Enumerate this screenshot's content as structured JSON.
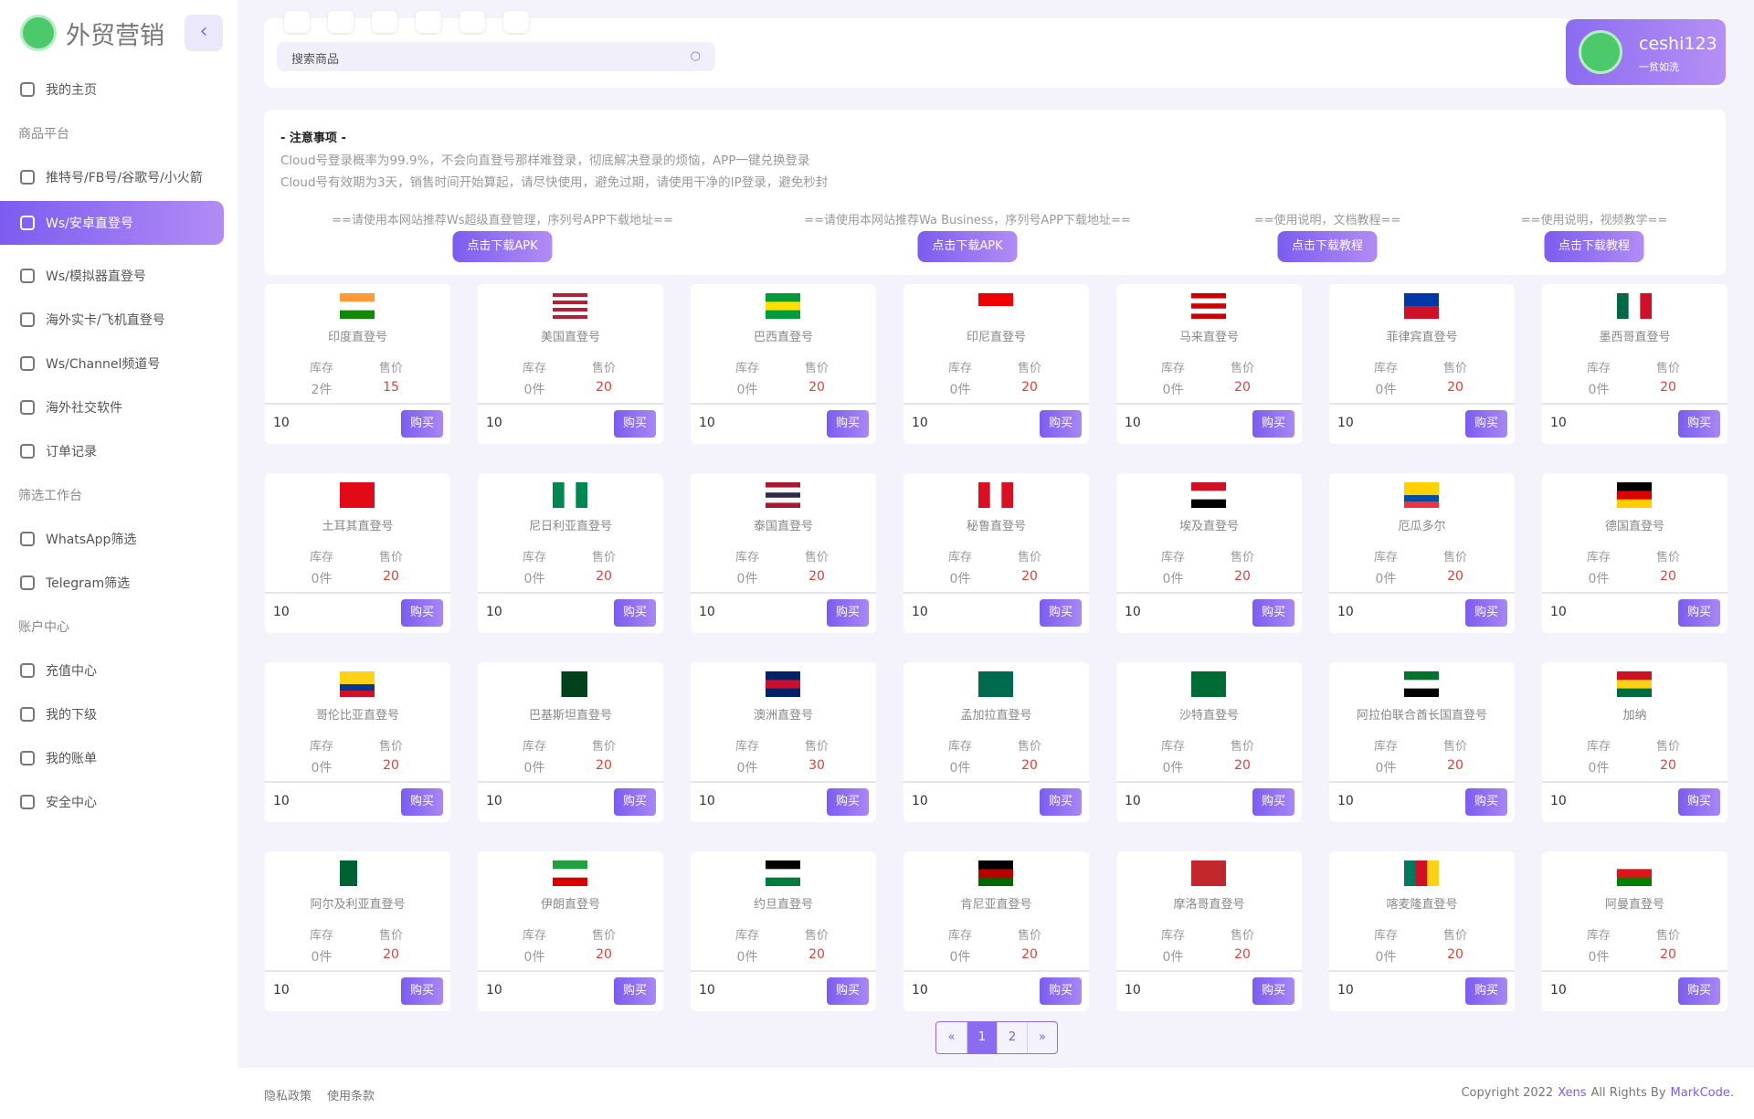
{
  "brand": "外贸营销",
  "sidebar": [
    {
      "label": "我的主页"
    },
    {
      "heading": "商品平台"
    },
    {
      "label": "推特号/FB号/谷歌号/小火箭"
    },
    {
      "label": "Ws/安卓直登号",
      "active": true
    },
    {
      "label": "Ws/模拟器直登号"
    },
    {
      "label": "海外实卡/飞机直登号"
    },
    {
      "label": "Ws/Channel频道号"
    },
    {
      "label": "海外社交软件"
    },
    {
      "label": "订单记录"
    },
    {
      "heading": "筛选工作台"
    },
    {
      "label": "WhatsApp筛选"
    },
    {
      "label": "Telegram筛选"
    },
    {
      "heading": "账户中心"
    },
    {
      "label": "充值中心"
    },
    {
      "label": "我的下级"
    },
    {
      "label": "我的账单"
    },
    {
      "label": "安全中心"
    }
  ],
  "header": {
    "search_placeholder": "搜索商品",
    "user": "ceshi123",
    "user_status": "一贫如洗"
  },
  "notice": {
    "title": "- 注意事项 -",
    "lines": [
      "Cloud号登录概率为99.9%，不会向直登号那样难登录，彻底解决登录的烦恼，APP一键兑换登录",
      "Cloud号有效期为3天，销售时间开始算起，请尽快使用，避免过期，请使用干净的IP登录，避免秒封"
    ],
    "downloads": [
      {
        "caption": "==请使用本网站推荐Ws超级直登管理，序列号APP下载地址==",
        "button": "点击下载APK"
      },
      {
        "caption": "==请使用本网站推荐Wa Business，序列号APP下载地址==",
        "button": "点击下载APK"
      },
      {
        "caption": "==使用说明，文档教程==",
        "button": "点击下载教程"
      },
      {
        "caption": "==使用说明，视频教学==",
        "button": "点击下载教程"
      }
    ]
  },
  "labels": {
    "stock": "库存",
    "price": "售价",
    "buy": "购买"
  },
  "products": [
    {
      "name": "印度直登号",
      "stock": "2件",
      "price": 15,
      "qty": 10
    },
    {
      "name": "美国直登号",
      "stock": "0件",
      "price": 20,
      "qty": 10
    },
    {
      "name": "巴西直登号",
      "stock": "0件",
      "price": 20,
      "qty": 10
    },
    {
      "name": "印尼直登号",
      "stock": "0件",
      "price": 20,
      "qty": 10
    },
    {
      "name": "马来直登号",
      "stock": "0件",
      "price": 20,
      "qty": 10
    },
    {
      "name": "菲律宾直登号",
      "stock": "0件",
      "price": 20,
      "qty": 10
    },
    {
      "name": "墨西哥直登号",
      "stock": "0件",
      "price": 20,
      "qty": 10
    },
    {
      "name": "土耳其直登号",
      "stock": "0件",
      "price": 20,
      "qty": 10
    },
    {
      "name": "尼日利亚直登号",
      "stock": "0件",
      "price": 20,
      "qty": 10
    },
    {
      "name": "泰国直登号",
      "stock": "0件",
      "price": 20,
      "qty": 10
    },
    {
      "name": "秘鲁直登号",
      "stock": "0件",
      "price": 20,
      "qty": 10
    },
    {
      "name": "埃及直登号",
      "stock": "0件",
      "price": 20,
      "qty": 10
    },
    {
      "name": "厄瓜多尔",
      "stock": "0件",
      "price": 20,
      "qty": 10
    },
    {
      "name": "德国直登号",
      "stock": "0件",
      "price": 20,
      "qty": 10
    },
    {
      "name": "哥伦比亚直登号",
      "stock": "0件",
      "price": 20,
      "qty": 10
    },
    {
      "name": "巴基斯坦直登号",
      "stock": "0件",
      "price": 20,
      "qty": 10
    },
    {
      "name": "澳洲直登号",
      "stock": "0件",
      "price": 30,
      "qty": 10
    },
    {
      "name": "孟加拉直登号",
      "stock": "0件",
      "price": 20,
      "qty": 10
    },
    {
      "name": "沙特直登号",
      "stock": "0件",
      "price": 20,
      "qty": 10
    },
    {
      "name": "阿拉伯联合酋长国直登号",
      "stock": "0件",
      "price": 20,
      "qty": 10
    },
    {
      "name": "加纳",
      "stock": "0件",
      "price": 20,
      "qty": 10
    },
    {
      "name": "阿尔及利亚直登号",
      "stock": "0件",
      "price": 20,
      "qty": 10
    },
    {
      "name": "伊朗直登号",
      "stock": "0件",
      "price": 20,
      "qty": 10
    },
    {
      "name": "约旦直登号",
      "stock": "0件",
      "price": 20,
      "qty": 10
    },
    {
      "name": "肯尼亚直登号",
      "stock": "0件",
      "price": 20,
      "qty": 10
    },
    {
      "name": "摩洛哥直登号",
      "stock": "0件",
      "price": 20,
      "qty": 10
    },
    {
      "name": "喀麦隆直登号",
      "stock": "0件",
      "price": 20,
      "qty": 10
    },
    {
      "name": "阿曼直登号",
      "stock": "0件",
      "price": 20,
      "qty": 10
    }
  ],
  "pagination": [
    "«",
    1,
    2,
    "»"
  ],
  "footer": {
    "links": [
      "隐私政策",
      "使用条款"
    ],
    "copyright": [
      "Copyright 2022",
      "Xens",
      "All Rights By",
      "MarkCode."
    ]
  }
}
